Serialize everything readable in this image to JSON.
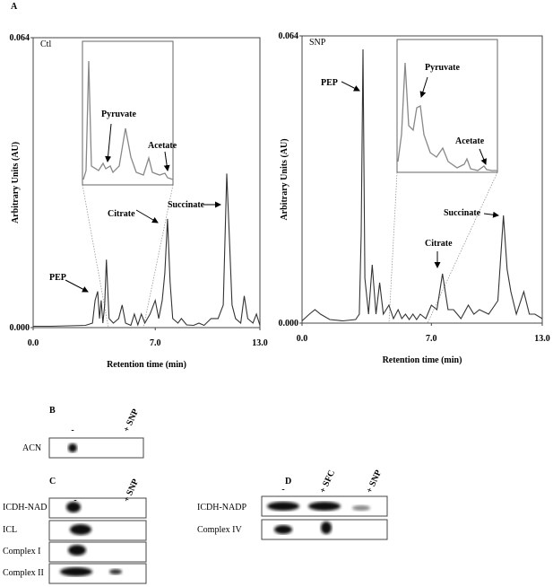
{
  "figure_label": "A",
  "chart_data": [
    {
      "type": "line",
      "title": "Ctl",
      "ylabel": "Arbitrary Units (AU)",
      "xlabel": "Retention time (min)",
      "xlim": [
        0,
        13
      ],
      "ylim": [
        0,
        0.064
      ],
      "xticks": [
        {
          "value": 0,
          "label": "0.0"
        },
        {
          "value": 7,
          "label": "7.0"
        },
        {
          "value": 13,
          "label": "13.0"
        }
      ],
      "yticks": [
        {
          "value": 0,
          "label": "0.000"
        },
        {
          "value": 0.064,
          "label": "0.064"
        }
      ],
      "annotations": [
        "PEP",
        "Pyruvate",
        "Acetate",
        "Citrate",
        "Succinate"
      ],
      "series": [
        {
          "color": "#333333",
          "x": [
            0,
            1,
            2,
            3,
            3.4,
            3.55,
            3.7,
            3.8,
            3.9,
            4.0,
            4.1,
            4.2,
            4.35,
            4.6,
            4.9,
            5.1,
            5.3,
            5.6,
            5.8,
            6.0,
            6.2,
            6.4,
            6.7,
            7.0,
            7.2,
            7.4,
            7.55,
            7.7,
            7.85,
            8.0,
            8.3,
            8.5,
            8.8,
            9.2,
            9.5,
            9.8,
            10.2,
            10.6,
            10.9,
            11.0,
            11.1,
            11.25,
            11.4,
            11.6,
            11.9,
            12.1,
            12.3,
            12.6,
            12.8,
            13.0
          ],
          "values": [
            0.0003,
            0.0003,
            0.0004,
            0.0005,
            0.001,
            0.006,
            0.008,
            0.002,
            0.006,
            0.001,
            0.005,
            0.015,
            0.002,
            0.001,
            0.002,
            0.005,
            0.001,
            0.0005,
            0.003,
            0.0006,
            0.003,
            0.001,
            0.003,
            0.006,
            0.002,
            0.006,
            0.012,
            0.024,
            0.01,
            0.002,
            0.001,
            0.002,
            0.0006,
            0.0005,
            0.001,
            0.0005,
            0.002,
            0.002,
            0.005,
            0.02,
            0.034,
            0.02,
            0.005,
            0.002,
            0.001,
            0.007,
            0.002,
            0.001,
            0.003,
            0.0005
          ]
        }
      ]
    },
    {
      "type": "line",
      "title": "SNP",
      "ylabel": "Arbitrary Units (AU)",
      "xlabel": "Retention time (min)",
      "xlim": [
        0,
        13
      ],
      "ylim": [
        0,
        0.064
      ],
      "xticks": [
        {
          "value": 0,
          "label": "0.0"
        },
        {
          "value": 7,
          "label": "7.0"
        },
        {
          "value": 13,
          "label": "13.0"
        }
      ],
      "yticks": [
        {
          "value": 0,
          "label": "0.000"
        },
        {
          "value": 0.064,
          "label": "0.064"
        }
      ],
      "annotations": [
        "PEP",
        "Pyruvate",
        "Acetate",
        "Citrate",
        "Succinate"
      ],
      "series": [
        {
          "color": "#333333",
          "x": [
            0,
            0.4,
            0.7,
            1.0,
            1.5,
            2.2,
            2.9,
            3.1,
            3.2,
            3.3,
            3.4,
            3.6,
            3.8,
            4.0,
            4.2,
            4.4,
            4.7,
            4.95,
            5.2,
            5.4,
            5.6,
            5.8,
            6.0,
            6.2,
            6.4,
            6.7,
            7.0,
            7.3,
            7.6,
            7.9,
            8.2,
            8.6,
            9.0,
            9.3,
            9.6,
            10.1,
            10.6,
            10.9,
            11.1,
            11.3,
            11.6,
            12.0,
            12.3,
            12.6,
            13.0
          ],
          "values": [
            0.0005,
            0.002,
            0.003,
            0.002,
            0.0008,
            0.0005,
            0.0008,
            0.002,
            0.02,
            0.061,
            0.01,
            0.002,
            0.013,
            0.002,
            0.009,
            0.002,
            0.004,
            0.001,
            0.003,
            0.001,
            0.002,
            0.0008,
            0.002,
            0.0008,
            0.002,
            0.001,
            0.004,
            0.003,
            0.011,
            0.003,
            0.003,
            0.001,
            0.004,
            0.002,
            0.003,
            0.002,
            0.005,
            0.024,
            0.012,
            0.007,
            0.002,
            0.007,
            0.002,
            0.002,
            0.001
          ]
        }
      ]
    }
  ],
  "panel_b": {
    "label": "B",
    "columns": [
      "-",
      "+ SNP"
    ],
    "rows": [
      "ACN"
    ]
  },
  "panel_c": {
    "label": "C",
    "columns": [
      "-",
      "+ SNP"
    ],
    "rows": [
      "ICDH-NAD",
      "ICL",
      "Complex I",
      "Complex II"
    ]
  },
  "panel_d": {
    "label": "D",
    "columns": [
      "-",
      "+ SFC",
      "+ SNP"
    ],
    "rows": [
      "ICDH-NADP",
      "Complex IV"
    ]
  }
}
